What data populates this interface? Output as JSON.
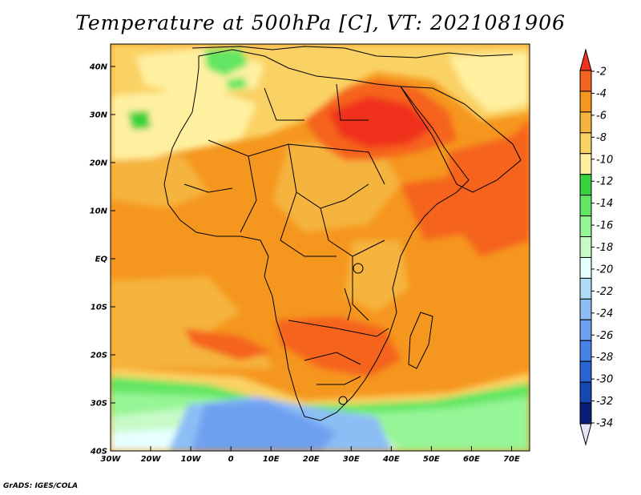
{
  "title": "Temperature at 500hPa [C], VT: 2021081906",
  "credit": "GrADS: IGES/COLA",
  "x_ticks": [
    "30W",
    "20W",
    "10W",
    "0",
    "10E",
    "20E",
    "30E",
    "40E",
    "50E",
    "60E",
    "70E"
  ],
  "y_ticks": [
    "40N",
    "30N",
    "20N",
    "10N",
    "EQ",
    "10S",
    "20S",
    "30S",
    "40S"
  ],
  "colorbar": {
    "labels": [
      "-2",
      "-4",
      "-6",
      "-8",
      "-10",
      "-12",
      "-14",
      "-16",
      "-18",
      "-20",
      "-22",
      "-24",
      "-26",
      "-28",
      "-30",
      "-32",
      "-34"
    ],
    "colors": [
      "#f0321e",
      "#f5641e",
      "#f5961e",
      "#f5b43c",
      "#fad264",
      "#fff0a0",
      "#37d23c",
      "#64e664",
      "#96f596",
      "#c8fac8",
      "#e6ffff",
      "#afdcf5",
      "#8cbef5",
      "#6ea0f0",
      "#4682e6",
      "#2864d2",
      "#1446b4",
      "#0a1e78",
      "#e6e6fa"
    ]
  },
  "colors": {
    "warm_orange": "#f5961e",
    "light_orange": "#f5b43c",
    "yellow": "#fad264",
    "red": "#f5641e",
    "deep_red": "#f0321e",
    "green": "#64e664",
    "light_green": "#96f596",
    "blue": "#6ea0f0"
  }
}
